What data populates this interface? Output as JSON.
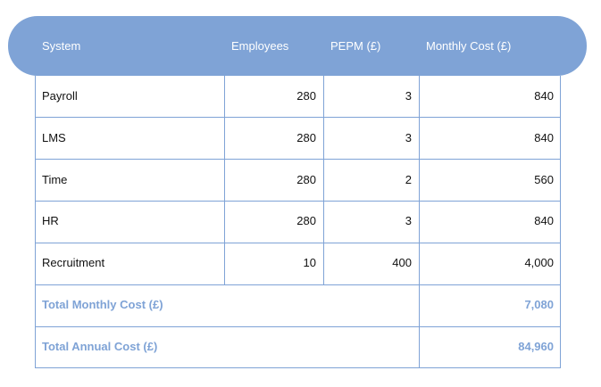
{
  "table": {
    "headers": [
      "System",
      "Employees",
      "PEPM (£)",
      "Monthly Cost (£)"
    ],
    "rows": [
      {
        "system": "Payroll",
        "employees": "280",
        "pepm": "3",
        "monthly": "840"
      },
      {
        "system": "LMS",
        "employees": "280",
        "pepm": "3",
        "monthly": "840"
      },
      {
        "system": "Time",
        "employees": "280",
        "pepm": "2",
        "monthly": "560"
      },
      {
        "system": "HR",
        "employees": "280",
        "pepm": "3",
        "monthly": "840"
      },
      {
        "system": "Recruitment",
        "employees": "10",
        "pepm": "400",
        "monthly": "4,000"
      }
    ],
    "totals": [
      {
        "label": "Total Monthly Cost (£)",
        "value": "7,080"
      },
      {
        "label": "Total Annual Cost (£)",
        "value": "84,960"
      }
    ]
  },
  "colors": {
    "accent": "#7fa3d6",
    "text": "#111111",
    "header_text": "#ffffff"
  }
}
